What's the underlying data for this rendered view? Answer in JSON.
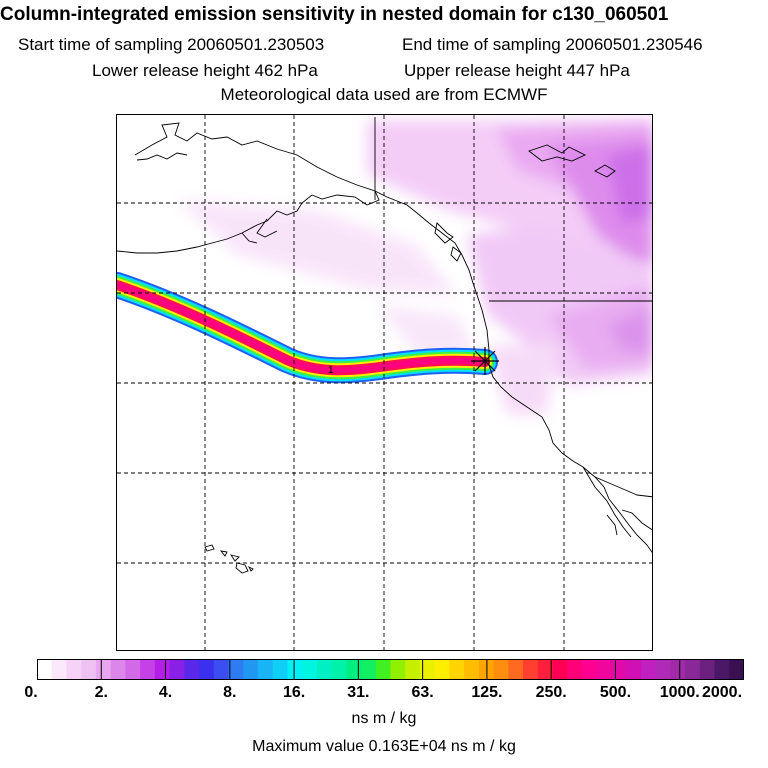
{
  "header": {
    "title": "Column-integrated emission sensitivity in nested domain for c130_060501",
    "start_time": "Start time of sampling 20060501.230503",
    "end_time": "End time of sampling 20060501.230546",
    "lower_height": "Lower release height  462 hPa",
    "upper_height": "Upper release height  447 hPa",
    "met_data": "Meteorological data used are from ECMWF"
  },
  "map": {
    "receptor_marker": "receptor-star",
    "trajectory_label": "1"
  },
  "colorbar": {
    "labels": [
      "0.",
      "2.",
      "4.",
      "8.",
      "16.",
      "31.",
      "63.",
      "125.",
      "250.",
      "500.",
      "1000.",
      "2000."
    ],
    "colors": [
      "#ffffff",
      "#fbe8fb",
      "#f6d3f6",
      "#efc0f2",
      "#e8a6ee",
      "#dc86ea",
      "#d26ae8",
      "#c640e8",
      "#b51ee8",
      "#8a20e6",
      "#5a28ea",
      "#3a30ee",
      "#3c4ef2",
      "#2f7cf2",
      "#2098f2",
      "#18b4f6",
      "#10cef6",
      "#00f0f6",
      "#00f4e0",
      "#00f0c4",
      "#00f2aa",
      "#00ee80",
      "#10f060",
      "#40f020",
      "#90f000",
      "#c4f000",
      "#eaf000",
      "#ffee00",
      "#ffd400",
      "#ffbc00",
      "#ffa400",
      "#ff8e10",
      "#ff6a20",
      "#ff4030",
      "#ff1e3c",
      "#ff0054",
      "#ff0078",
      "#ff0090",
      "#f0069c",
      "#e00aa8",
      "#d010b4",
      "#c020c0",
      "#b02ab8",
      "#a02aa8",
      "#8a2898",
      "#6c2080",
      "#4a1866",
      "#3a1050"
    ],
    "units": "ns m / kg",
    "max_value": "Maximum value  0.163E+04 ns m / kg"
  }
}
